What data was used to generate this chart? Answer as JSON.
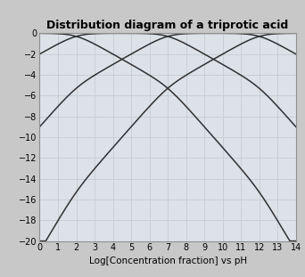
{
  "title": "Distribution diagram of a triprotic acid",
  "xlabel": "Log[Concentration fraction] vs pH",
  "xlim": [
    0,
    14
  ],
  "ylim": [
    -20,
    0
  ],
  "xticks": [
    0,
    1,
    2,
    3,
    4,
    5,
    6,
    7,
    8,
    9,
    10,
    11,
    12,
    13,
    14
  ],
  "yticks": [
    0,
    -2,
    -4,
    -6,
    -8,
    -10,
    -12,
    -14,
    -16,
    -18,
    -20
  ],
  "pKa1": 2,
  "pKa2": 7,
  "pKa3": 12,
  "line_color": "#303030",
  "line_width": 1.1,
  "grid_color": "#c8cfd6",
  "background_color": "#c8c8c8",
  "plot_bg_color": "#dde2e8",
  "title_fontsize": 9,
  "axis_fontsize": 7.5,
  "tick_fontsize": 7
}
